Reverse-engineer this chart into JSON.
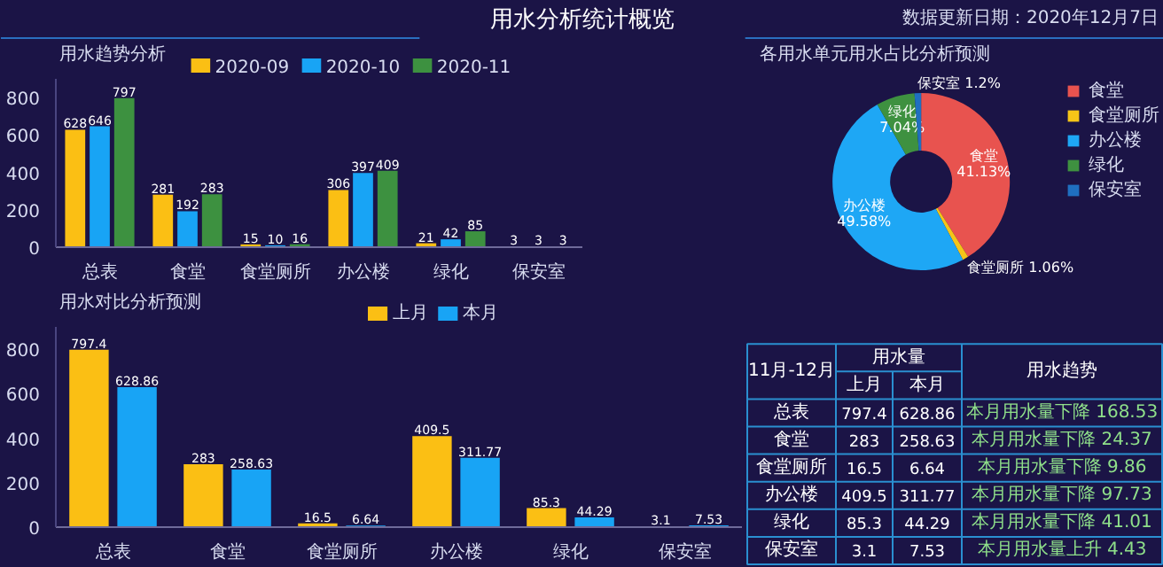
{
  "chart_data": [
    {
      "type": "other",
      "title": "用水分析统计概览",
      "annotations": [
        "数据更新日期：2020年12月7日"
      ]
    },
    {
      "type": "bar",
      "title": "用水趋势分析",
      "categories": [
        "总表",
        "食堂",
        "食堂厕所",
        "办公楼",
        "绿化",
        "保安室"
      ],
      "series": [
        {
          "name": "2020-09",
          "color": "#fbbf14",
          "values": [
            628,
            281,
            15,
            306,
            21,
            3
          ]
        },
        {
          "name": "2020-10",
          "color": "#18a4f5",
          "values": [
            646,
            192,
            10,
            397,
            42,
            3
          ]
        },
        {
          "name": "2020-11",
          "color": "#3d9140",
          "values": [
            797,
            283,
            16,
            409,
            85,
            3
          ]
        }
      ],
      "ylim": [
        0,
        900
      ],
      "yticks": [
        0,
        200,
        400,
        600,
        800
      ],
      "data_labels": true,
      "legend": "top"
    },
    {
      "type": "donut",
      "title": "各用水单元用水占比分析预测",
      "categories": [
        "食堂",
        "食堂厕所",
        "办公楼",
        "绿化",
        "保安室"
      ],
      "values": [
        41.13,
        1.06,
        49.58,
        7.04,
        1.2
      ],
      "colors": [
        "#e8534f",
        "#f5c518",
        "#1ea7f5",
        "#3e9140",
        "#1f6fc0"
      ],
      "value_labels": [
        "食堂\n41.13%",
        "食堂厕所\n1.06%",
        "办公楼\n49.58%",
        "绿化\n7.04%",
        "保安室\n1.2%"
      ],
      "legend": "top right"
    },
    {
      "type": "bar",
      "title": "用水对比分析预测",
      "categories": [
        "总表",
        "食堂",
        "食堂厕所",
        "办公楼",
        "绿化",
        "保安室"
      ],
      "series": [
        {
          "name": "上月",
          "color": "#fbbf14",
          "values": [
            797.4,
            283,
            16.5,
            409.5,
            85.3,
            3.1
          ]
        },
        {
          "name": "本月",
          "color": "#18a4f5",
          "values": [
            628.86,
            258.63,
            6.64,
            311.77,
            44.29,
            7.53
          ]
        }
      ],
      "ylim": [
        0,
        900
      ],
      "yticks": [
        0,
        200,
        400,
        600,
        800
      ],
      "data_labels": true,
      "legend": "top"
    },
    {
      "type": "other",
      "annotations": [
        "11月-12月",
        "用水量",
        "用水趋势",
        "上月",
        "本月",
        "总表",
        "797.4",
        "628.86",
        "本月用水量下降 168.53",
        "食堂",
        "283",
        "258.63",
        "本月用水量下降 24.37",
        "食堂厕所",
        "16.5",
        "6.64",
        "本月用水量下降 9.86",
        "办公楼",
        "409.5",
        "311.77",
        "本月用水量下降 97.73",
        "绿化",
        "85.3",
        "44.29",
        "本月用水量下降 41.01",
        "保安室",
        "3.1",
        "7.53",
        "本月用水量上升 4.43"
      ]
    }
  ]
}
